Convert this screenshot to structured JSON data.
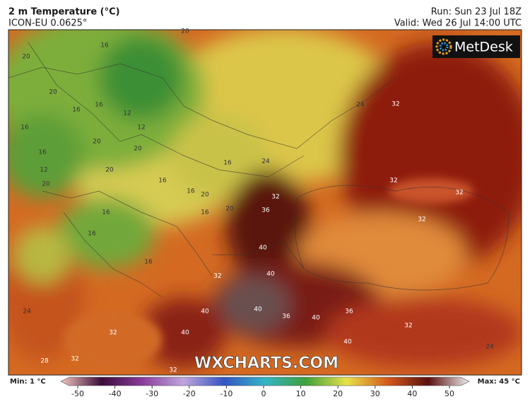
{
  "header": {
    "title": "2 m Temperature (°C)",
    "model": "ICON-EU 0.0625°",
    "run": "Run: Sun 23 Jul 18Z",
    "valid": "Valid: Wed 26 Jul 14:00 UTC"
  },
  "logo": "MetDesk",
  "watermark": "WXCHARTS.COM",
  "colorbar": {
    "min": "Min: 1 °C",
    "max": "Max: 45 °C",
    "ticks": [
      -50,
      -40,
      -30,
      -20,
      -10,
      0,
      10,
      20,
      30,
      40,
      50
    ]
  },
  "contour_labels": [
    16,
    20,
    20,
    20,
    16,
    16,
    12,
    12,
    16,
    16,
    12,
    20,
    20,
    20,
    20,
    16,
    16,
    20,
    16,
    16,
    20,
    16,
    16,
    16,
    24,
    32,
    36,
    24,
    32,
    32,
    32,
    32,
    40,
    40,
    32,
    40,
    36,
    40,
    36,
    40,
    40,
    32,
    32,
    32,
    24,
    28,
    40,
    24,
    32
  ]
}
